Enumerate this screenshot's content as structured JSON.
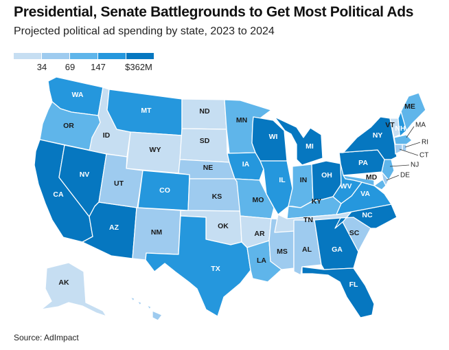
{
  "header": {
    "title": "Presidential, Senate Battlegrounds to Get Most Political Ads",
    "subtitle": "Projected political ad spending by state, 2023 to 2024"
  },
  "legend": {
    "labels": [
      "34",
      "69",
      "147",
      "$362M"
    ],
    "colors": [
      "#c6def2",
      "#9ecbef",
      "#5fb5ea",
      "#2597dd",
      "#0677c0"
    ]
  },
  "source": "Source: AdImpact",
  "states": [
    {
      "code": "WA",
      "bin": 3
    },
    {
      "code": "OR",
      "bin": 2
    },
    {
      "code": "CA",
      "bin": 4
    },
    {
      "code": "ID",
      "bin": 0
    },
    {
      "code": "NV",
      "bin": 4
    },
    {
      "code": "AZ",
      "bin": 4
    },
    {
      "code": "MT",
      "bin": 3
    },
    {
      "code": "WY",
      "bin": 0
    },
    {
      "code": "UT",
      "bin": 1
    },
    {
      "code": "CO",
      "bin": 3
    },
    {
      "code": "NM",
      "bin": 1
    },
    {
      "code": "ND",
      "bin": 0
    },
    {
      "code": "SD",
      "bin": 0
    },
    {
      "code": "NE",
      "bin": 1
    },
    {
      "code": "KS",
      "bin": 1
    },
    {
      "code": "OK",
      "bin": 0
    },
    {
      "code": "TX",
      "bin": 3
    },
    {
      "code": "MN",
      "bin": 2
    },
    {
      "code": "IA",
      "bin": 3
    },
    {
      "code": "MO",
      "bin": 2
    },
    {
      "code": "AR",
      "bin": 0
    },
    {
      "code": "LA",
      "bin": 2
    },
    {
      "code": "WI",
      "bin": 4
    },
    {
      "code": "IL",
      "bin": 3
    },
    {
      "code": "MS",
      "bin": 1
    },
    {
      "code": "MI",
      "bin": 4
    },
    {
      "code": "IN",
      "bin": 2
    },
    {
      "code": "OH",
      "bin": 4
    },
    {
      "code": "KY",
      "bin": 2
    },
    {
      "code": "TN",
      "bin": 0
    },
    {
      "code": "AL",
      "bin": 1
    },
    {
      "code": "GA",
      "bin": 4
    },
    {
      "code": "FL",
      "bin": 4
    },
    {
      "code": "SC",
      "bin": 1
    },
    {
      "code": "NC",
      "bin": 4
    },
    {
      "code": "VA",
      "bin": 3
    },
    {
      "code": "WV",
      "bin": 3
    },
    {
      "code": "PA",
      "bin": 4
    },
    {
      "code": "NY",
      "bin": 4
    },
    {
      "code": "VT",
      "bin": 0
    },
    {
      "code": "NH",
      "bin": 3
    },
    {
      "code": "ME",
      "bin": 2
    },
    {
      "code": "MA",
      "bin": 2
    },
    {
      "code": "RI",
      "bin": 1
    },
    {
      "code": "CT",
      "bin": 1
    },
    {
      "code": "NJ",
      "bin": 2
    },
    {
      "code": "DE",
      "bin": 1
    },
    {
      "code": "MD",
      "bin": 2
    },
    {
      "code": "AK",
      "bin": 0
    },
    {
      "code": "HI",
      "bin": 1
    }
  ]
}
